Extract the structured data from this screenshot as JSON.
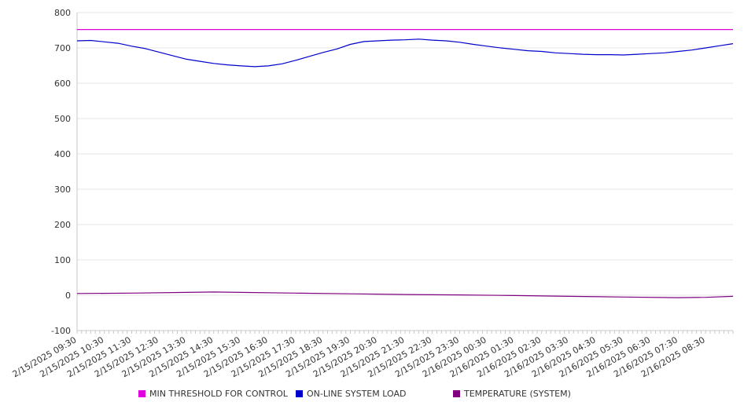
{
  "chart_data": {
    "type": "line",
    "title": "",
    "xlabel": "",
    "ylabel": "",
    "ylim": [
      -100,
      800
    ],
    "yticks": [
      -100,
      0,
      100,
      200,
      300,
      400,
      500,
      600,
      700,
      800
    ],
    "x_start": "2/15/2025 09:30",
    "x_tick_labels": [
      "2/15/2025 09:30",
      "2/15/2025 10:30",
      "2/15/2025 11:30",
      "2/15/2025 12:30",
      "2/15/2025 13:30",
      "2/15/2025 14:30",
      "2/15/2025 15:30",
      "2/15/2025 16:30",
      "2/15/2025 17:30",
      "2/15/2025 18:30",
      "2/15/2025 19:30",
      "2/15/2025 20:30",
      "2/15/2025 21:30",
      "2/15/2025 22:30",
      "2/15/2025 23:30",
      "2/16/2025 00:30",
      "2/16/2025 01:30",
      "2/16/2025 02:30",
      "2/16/2025 03:30",
      "2/16/2025 04:30",
      "2/16/2025 05:30",
      "2/16/2025 06:30",
      "2/16/2025 07:30",
      "2/16/2025 08:30"
    ],
    "x_end": "2/16/2025 09:30",
    "grid": true,
    "legend_position": "bottom",
    "series": [
      {
        "name": "MIN THRESHOLD FOR CONTROL",
        "color": "#e000e0",
        "x": [
          "2/15/2025 09:30",
          "2/16/2025 09:30"
        ],
        "y": [
          752,
          752
        ]
      },
      {
        "name": "ON-LINE SYSTEM LOAD",
        "color": "#0000cc",
        "x": [
          "2/15/2025 09:30",
          "2/15/2025 10:00",
          "2/15/2025 10:30",
          "2/15/2025 11:00",
          "2/15/2025 11:30",
          "2/15/2025 12:00",
          "2/15/2025 12:30",
          "2/15/2025 13:00",
          "2/15/2025 13:30",
          "2/15/2025 14:00",
          "2/15/2025 14:30",
          "2/15/2025 15:00",
          "2/15/2025 15:30",
          "2/15/2025 16:00",
          "2/15/2025 16:30",
          "2/15/2025 17:00",
          "2/15/2025 17:30",
          "2/15/2025 18:00",
          "2/15/2025 18:30",
          "2/15/2025 19:00",
          "2/15/2025 19:30",
          "2/15/2025 20:00",
          "2/15/2025 20:30",
          "2/15/2025 21:00",
          "2/15/2025 21:30",
          "2/15/2025 22:00",
          "2/15/2025 22:30",
          "2/15/2025 23:00",
          "2/15/2025 23:30",
          "2/16/2025 00:00",
          "2/16/2025 00:30",
          "2/16/2025 01:00",
          "2/16/2025 01:30",
          "2/16/2025 02:00",
          "2/16/2025 02:30",
          "2/16/2025 03:00",
          "2/16/2025 03:30",
          "2/16/2025 04:00",
          "2/16/2025 04:30",
          "2/16/2025 05:00",
          "2/16/2025 05:30",
          "2/16/2025 06:00",
          "2/16/2025 06:30",
          "2/16/2025 07:00",
          "2/16/2025 07:30",
          "2/16/2025 08:00",
          "2/16/2025 08:30",
          "2/16/2025 09:00",
          "2/16/2025 09:30"
        ],
        "y": [
          720,
          721,
          717,
          713,
          705,
          698,
          688,
          678,
          668,
          662,
          656,
          652,
          649,
          647,
          649,
          655,
          665,
          676,
          687,
          697,
          710,
          718,
          720,
          722,
          723,
          725,
          722,
          720,
          716,
          710,
          705,
          700,
          696,
          692,
          690,
          686,
          684,
          682,
          681,
          681,
          680,
          682,
          684,
          686,
          690,
          694,
          700,
          706,
          712
        ]
      },
      {
        "name": "TEMPERATURE (SYSTEM)",
        "color": "#800080",
        "x": [
          "2/15/2025 09:30",
          "2/15/2025 11:30",
          "2/15/2025 13:30",
          "2/15/2025 14:30",
          "2/15/2025 15:30",
          "2/15/2025 17:30",
          "2/15/2025 19:30",
          "2/15/2025 21:30",
          "2/15/2025 23:30",
          "2/16/2025 01:30",
          "2/16/2025 03:30",
          "2/16/2025 05:30",
          "2/16/2025 07:30",
          "2/16/2025 08:30",
          "2/16/2025 09:30"
        ],
        "y": [
          5,
          6,
          8,
          9,
          8,
          6,
          4,
          2,
          1,
          -1,
          -3,
          -5,
          -7,
          -6,
          -3
        ]
      }
    ]
  }
}
